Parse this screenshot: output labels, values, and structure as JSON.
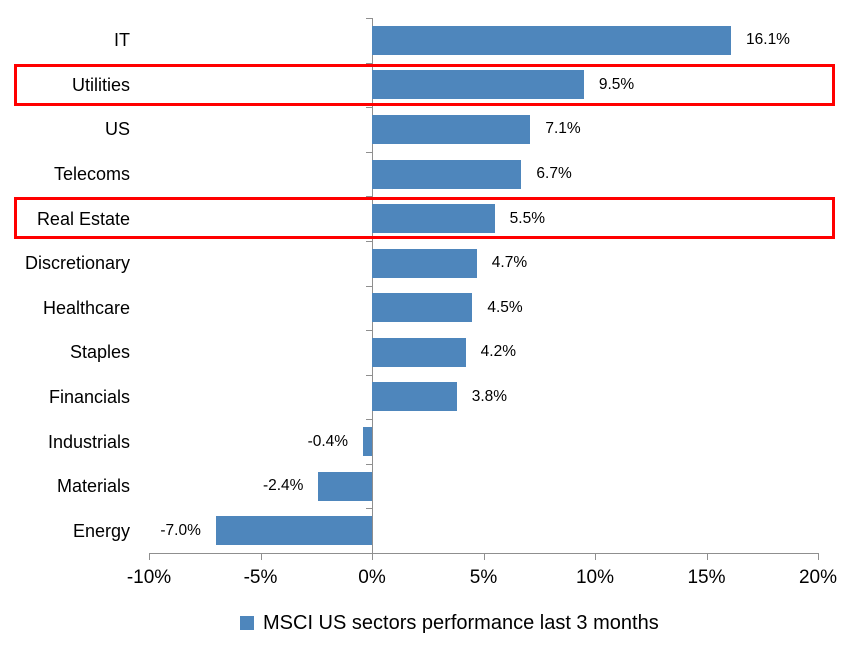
{
  "colors": {
    "bar": "#4E86BC",
    "highlight_border": "#FF0000",
    "axis_line": "#8F8F8F",
    "text": "#000000"
  },
  "chart_data": {
    "type": "bar",
    "orientation": "horizontal",
    "title": "",
    "categories": [
      "IT",
      "Utilities",
      "US",
      "Telecoms",
      "Real Estate",
      "Discretionary",
      "Healthcare",
      "Staples",
      "Financials",
      "Industrials",
      "Materials",
      "Energy"
    ],
    "values": [
      16.1,
      9.5,
      7.1,
      6.7,
      5.5,
      4.7,
      4.5,
      4.2,
      3.8,
      -0.4,
      -2.4,
      -7.0
    ],
    "value_labels": [
      "16.1%",
      "9.5%",
      "7.1%",
      "6.7%",
      "5.5%",
      "4.7%",
      "4.5%",
      "4.2%",
      "3.8%",
      "-0.4%",
      "-2.4%",
      "-7.0%"
    ],
    "highlighted_categories": [
      "Utilities",
      "Real Estate"
    ],
    "x_tick_labels": [
      "-10%",
      "-5%",
      "0%",
      "5%",
      "10%",
      "15%",
      "20%"
    ],
    "x_tick_values": [
      -10,
      -5,
      0,
      5,
      10,
      15,
      20
    ],
    "xlim": [
      -10,
      20
    ],
    "grid": false,
    "legend": {
      "position": "bottom",
      "marker": "square",
      "label": "MSCI US sectors performance last 3 months"
    }
  }
}
